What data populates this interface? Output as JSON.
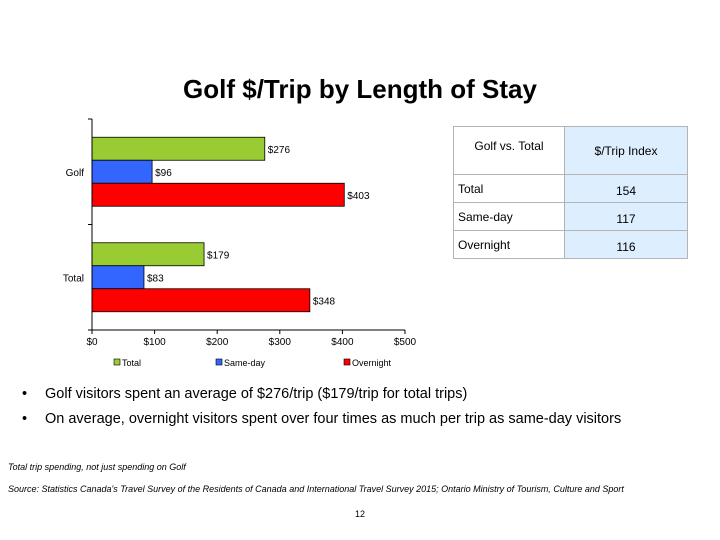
{
  "title": "Golf $/Trip by Length of Stay",
  "chart_data": {
    "type": "bar",
    "orientation": "horizontal",
    "categories": [
      "Golf",
      "Total"
    ],
    "series": [
      {
        "name": "Total",
        "values": [
          276,
          179
        ],
        "labels": [
          "$276",
          "$179"
        ],
        "color": "#99cc33"
      },
      {
        "name": "Same-day",
        "values": [
          96,
          83
        ],
        "labels": [
          "$96",
          "$83"
        ],
        "color": "#3366ff"
      },
      {
        "name": "Overnight",
        "values": [
          403,
          348
        ],
        "labels": [
          "$403",
          "$348"
        ],
        "color": "#ff0000"
      }
    ],
    "xlim": [
      0,
      500
    ],
    "xticks": [
      0,
      100,
      200,
      300,
      400,
      500
    ],
    "xtick_labels": [
      "$0",
      "$100",
      "$200",
      "$300",
      "$400",
      "$500"
    ],
    "legend_position": "bottom",
    "grid": false
  },
  "index_table": {
    "headers": [
      "Golf vs. Total",
      "$/Trip Index"
    ],
    "rows": [
      {
        "label": "Total",
        "value": "154"
      },
      {
        "label": "Same-day",
        "value": "117"
      },
      {
        "label": "Overnight",
        "value": "116"
      }
    ]
  },
  "bullets": [
    "Golf visitors spent an average of $276/trip ($179/trip for total trips)",
    "On average, overnight visitors spent over four times as much per trip as same-day visitors"
  ],
  "bullet_symbol": "•",
  "footnotes": [
    "Total trip spending, not just spending on Golf",
    "Source: Statistics Canada's Travel Survey of the Residents of Canada and International Travel Survey 2015; Ontario Ministry of Tourism, Culture and Sport"
  ],
  "page_number": "12"
}
